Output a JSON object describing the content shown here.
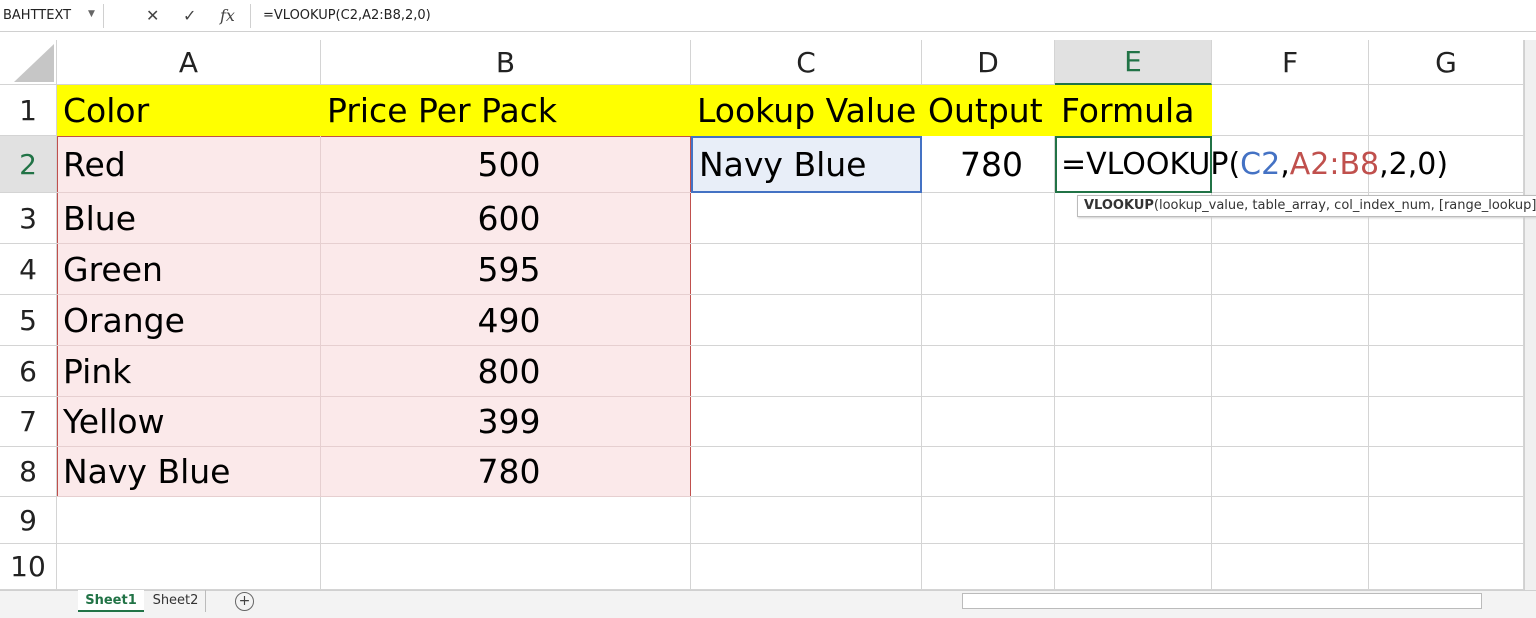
{
  "formula_bar": {
    "name_box": "BAHTTEXT",
    "function_icon": "fx",
    "formula": "=VLOOKUP(C2,A2:B8,2,0)"
  },
  "columns": [
    "A",
    "B",
    "C",
    "D",
    "E",
    "F",
    "G"
  ],
  "rows": [
    1,
    2,
    3,
    4,
    5,
    6,
    7,
    8,
    9,
    10
  ],
  "cells": {
    "header": [
      "Color",
      "Price Per Pack",
      "Lookup Value",
      "Output",
      "Formula"
    ],
    "table": [
      [
        "Red",
        500
      ],
      [
        "Blue",
        600
      ],
      [
        "Green",
        595
      ],
      [
        "Orange",
        490
      ],
      [
        "Pink",
        800
      ],
      [
        "Yellow",
        399
      ],
      [
        "Navy Blue",
        780
      ]
    ],
    "lookup_value": "Navy Blue",
    "output": 780,
    "formula_parts": [
      "=VLOOKUP(",
      "C2",
      ",",
      "A2:B8",
      ",2,0)"
    ]
  },
  "tooltip": {
    "function": "VLOOKUP",
    "arguments": "(lookup_value, table_array, col_index_num, [range_lookup])"
  },
  "sheet_tabs": [
    "Sheet1",
    "Sheet2"
  ]
}
